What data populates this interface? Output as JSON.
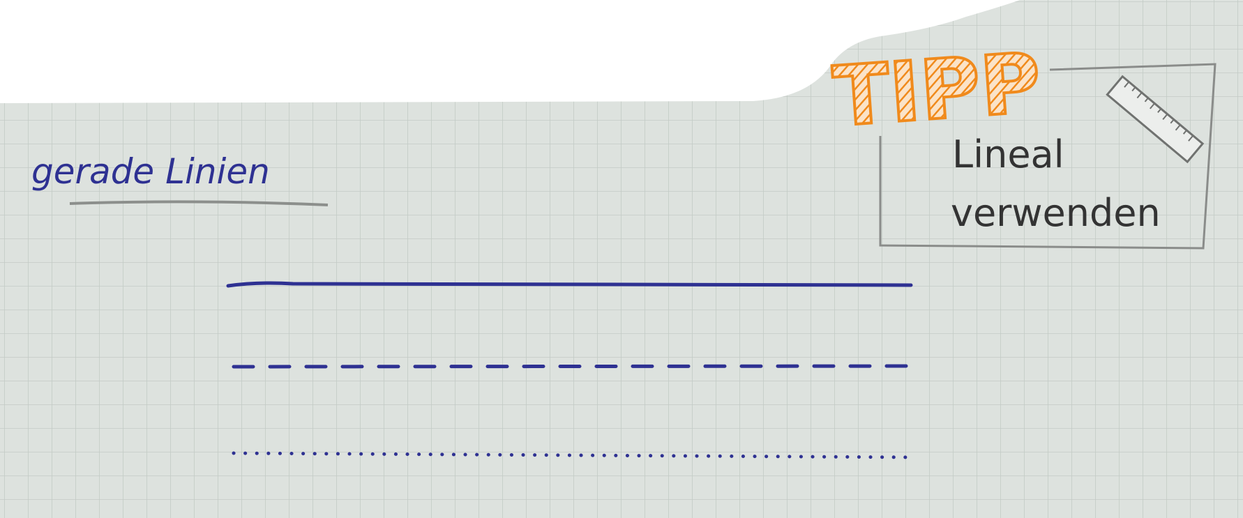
{
  "heading": "gerade Linien",
  "tip": {
    "badge": "TIPP",
    "lines": [
      "Lineal",
      "verwenden"
    ]
  }
}
